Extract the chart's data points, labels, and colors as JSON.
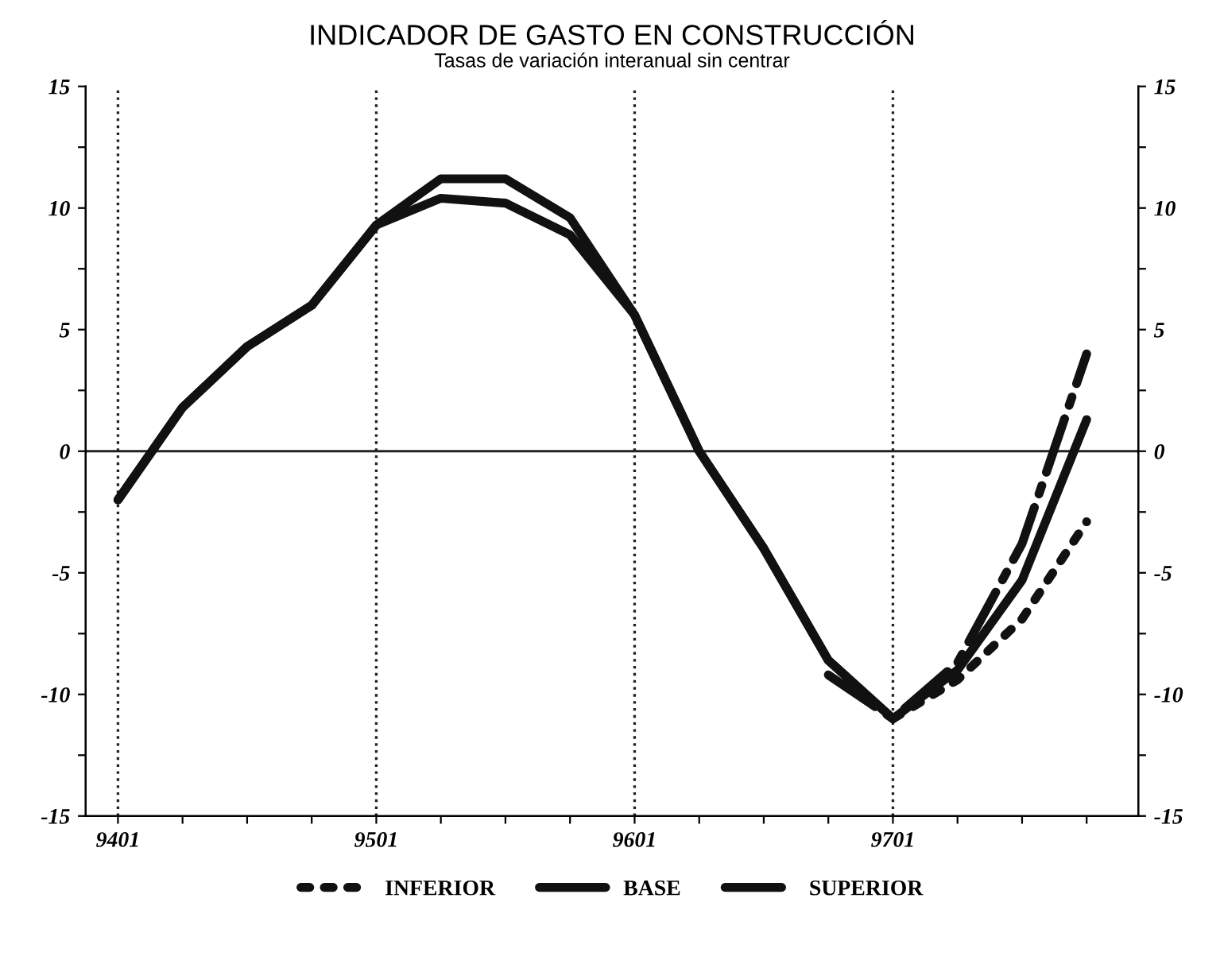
{
  "chart_data": {
    "type": "line",
    "title": "INDICADOR DE GASTO EN CONSTRUCCIÓN",
    "subtitle": "Tasas de variación interanual sin centrar",
    "categories": [
      "9401",
      null,
      null,
      null,
      "9501",
      null,
      null,
      null,
      "9601",
      null,
      null,
      null,
      "9701",
      null,
      null,
      null
    ],
    "series": [
      {
        "color": "#111111",
        "line_style": "solid",
        "values": [
          -2,
          1.8,
          4.3,
          6.0,
          9.3,
          11.2,
          11.2,
          9.6,
          5.6,
          0,
          -4,
          -8.6,
          -11,
          null,
          null,
          null
        ]
      },
      {
        "name": "INFERIOR",
        "color": "#111111",
        "line_style": "dotted",
        "values": [
          null,
          null,
          null,
          null,
          null,
          null,
          null,
          null,
          null,
          null,
          null,
          null,
          -11,
          -9.4,
          -6.9,
          -2.9
        ]
      },
      {
        "name": "BASE",
        "color": "#111111",
        "line_style": "solid",
        "values": [
          -2,
          1.8,
          4.3,
          6.0,
          9.3,
          10.4,
          10.2,
          8.9,
          5.6,
          0,
          -4,
          -8.6,
          -11,
          -9.0,
          -5.3,
          1.3
        ]
      },
      {
        "name": "SUPERIOR",
        "color": "#111111",
        "line_style": "dashdot",
        "values": [
          null,
          null,
          null,
          null,
          null,
          null,
          null,
          null,
          null,
          null,
          null,
          -9.2,
          -11,
          -8.7,
          -3.8,
          4.0
        ]
      }
    ],
    "ylim": [
      -15,
      15
    ],
    "yticks": [
      -15,
      {
        "value": -12.5,
        "label": null
      },
      -10,
      {
        "value": -7.5,
        "label": null
      },
      -5,
      {
        "value": -2.5,
        "label": null
      },
      0,
      {
        "value": 2.5,
        "label": null
      },
      5,
      {
        "value": 7.5,
        "label": null
      },
      10,
      {
        "value": 12.5,
        "label": null
      },
      15
    ],
    "y2lim": [
      -15,
      15
    ],
    "y2ticks": [
      -15,
      {
        "value": -12.5,
        "label": null
      },
      -10,
      {
        "value": -7.5,
        "label": null
      },
      -5,
      {
        "value": -2.5,
        "label": null
      },
      0,
      {
        "value": 2.5,
        "label": null
      },
      5,
      {
        "value": 7.5,
        "label": null
      },
      10,
      {
        "value": 12.5,
        "label": null
      },
      15
    ],
    "ref_lines": [
      {
        "axis": "x",
        "value": "9401",
        "line_style": "dotted"
      },
      {
        "axis": "x",
        "value": "9501",
        "line_style": "dotted"
      },
      {
        "axis": "x",
        "value": "9601",
        "line_style": "dotted"
      },
      {
        "axis": "x",
        "value": "9701",
        "line_style": "dotted"
      },
      {
        "axis": "y",
        "value": 0,
        "line_style": "solid"
      }
    ],
    "grid": false,
    "legend": "bottom"
  }
}
